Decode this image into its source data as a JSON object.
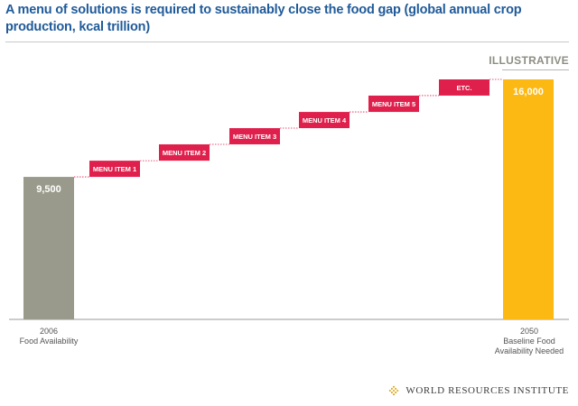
{
  "page": {
    "title": "A menu of solutions is required to sustainably close the food gap (global annual crop production, kcal trillion)",
    "tag": "ILLUSTRATIVE",
    "footer": "WORLD RESOURCES INSTITUTE"
  },
  "colors": {
    "title": "#1f5a99",
    "bar_2006": "#9a9a8c",
    "bar_2050": "#fcb813",
    "menu_item": "#e0204c",
    "connector": "#e0204c",
    "logo": "#d9a81e"
  },
  "icons": {
    "footer_logo": "wri-logo-icon"
  },
  "chart_data": {
    "type": "bar",
    "title": "A menu of solutions is required to sustainably close the food gap (global annual crop production, kcal trillion)",
    "categories": [
      {
        "line1": "2006",
        "line2": "Food Availability"
      },
      {
        "line1": "2050",
        "line2": "Baseline Food",
        "line3": "Availability Needed"
      }
    ],
    "values": [
      9500,
      16000
    ],
    "value_labels": [
      "9,500",
      "16,000"
    ],
    "ylim": [
      0,
      16000
    ],
    "grid": false,
    "steps": [
      {
        "label": "MENU ITEM 1",
        "from": 9500,
        "to": 10580
      },
      {
        "label": "MENU ITEM 2",
        "from": 10580,
        "to": 11670
      },
      {
        "label": "MENU ITEM 3",
        "from": 11670,
        "to": 12750
      },
      {
        "label": "MENU ITEM 4",
        "from": 12750,
        "to": 13830
      },
      {
        "label": "MENU ITEM 5",
        "from": 13830,
        "to": 14920
      },
      {
        "label": "ETC.",
        "from": 14920,
        "to": 16000
      }
    ]
  }
}
